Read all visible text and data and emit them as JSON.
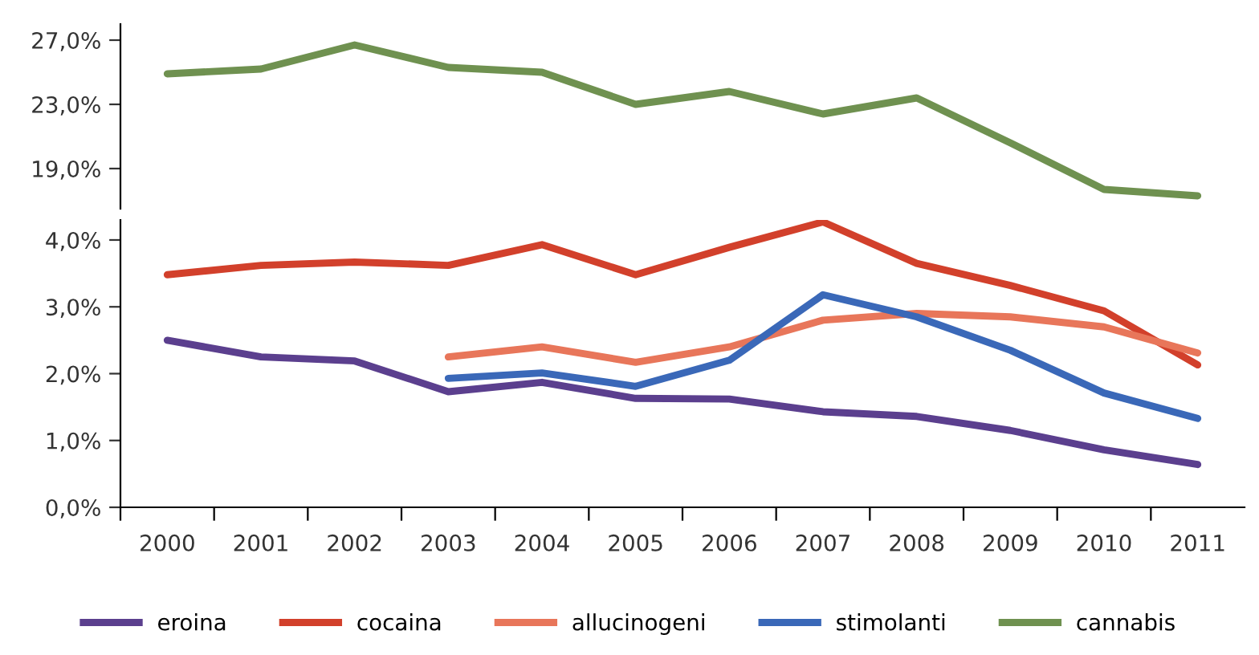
{
  "chart_data": [
    {
      "type": "line",
      "categories": [
        "2000",
        "2001",
        "2002",
        "2003",
        "2004",
        "2005",
        "2006",
        "2007",
        "2008",
        "2009",
        "2010",
        "2011"
      ],
      "ylim": [
        16.5,
        28
      ],
      "yticks": [
        {
          "value": 19,
          "label": "19,0%"
        },
        {
          "value": 23,
          "label": "23,0%"
        },
        {
          "value": 27,
          "label": "27,0%"
        }
      ],
      "tick_labels": "y",
      "grid": false,
      "legend": "bottom",
      "marker": "none",
      "series": [
        {
          "name": "cannabis",
          "color": "#6f9150",
          "values": [
            24.9,
            25.2,
            26.7,
            25.3,
            25.0,
            23.0,
            23.8,
            22.4,
            23.4,
            20.6,
            17.7,
            17.3
          ]
        }
      ]
    },
    {
      "type": "line",
      "categories": [
        "2000",
        "2001",
        "2002",
        "2003",
        "2004",
        "2005",
        "2006",
        "2007",
        "2008",
        "2009",
        "2010",
        "2011"
      ],
      "ylim": [
        0,
        4.3
      ],
      "yticks": [
        {
          "value": 0,
          "label": "0,0%"
        },
        {
          "value": 1,
          "label": "1,0%"
        },
        {
          "value": 2,
          "label": "2,0%"
        },
        {
          "value": 3,
          "label": "3,0%"
        },
        {
          "value": 4,
          "label": "4,0%"
        }
      ],
      "grid": false,
      "legend": "bottom",
      "marker": "none",
      "series": [
        {
          "name": "eroina",
          "color": "#5b3f8e",
          "values": [
            2.5,
            2.25,
            2.19,
            1.73,
            1.87,
            1.63,
            1.62,
            1.43,
            1.36,
            1.15,
            0.86,
            0.64
          ]
        },
        {
          "name": "cocaina",
          "color": "#d2402b",
          "values": [
            3.48,
            3.62,
            3.67,
            3.62,
            3.93,
            3.48,
            3.89,
            4.27,
            3.65,
            3.32,
            2.94,
            2.13
          ]
        },
        {
          "name": "allucinogeni",
          "color": "#e8765a",
          "values": [
            null,
            null,
            null,
            2.25,
            2.4,
            2.17,
            2.4,
            2.8,
            2.9,
            2.85,
            2.7,
            2.31
          ]
        },
        {
          "name": "stimolanti",
          "color": "#3a68b8",
          "values": [
            null,
            null,
            null,
            1.93,
            2.01,
            1.81,
            2.2,
            3.18,
            2.85,
            2.35,
            1.71,
            1.33
          ]
        }
      ]
    }
  ]
}
